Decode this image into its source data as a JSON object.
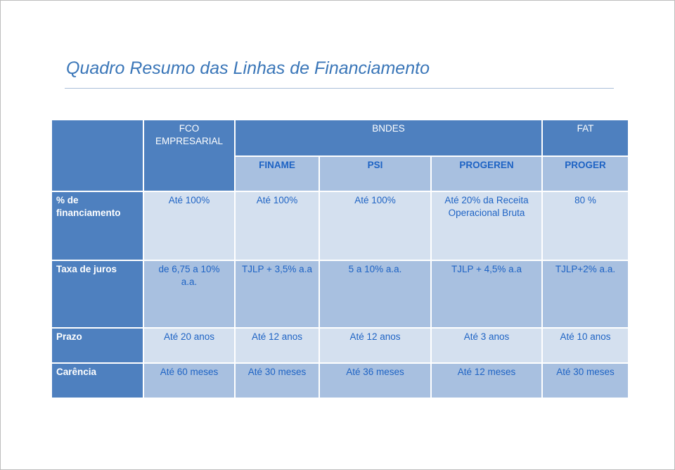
{
  "title": "Quadro Resumo das Linhas de Financiamento",
  "table": {
    "groups": {
      "fco": "FCO EMPRESARIAL",
      "bndes": "BNDES",
      "fat": "FAT"
    },
    "subheaders": {
      "finame": "FINAME",
      "psi": "PSI",
      "progeren": "PROGEREN",
      "proger": "PROGER"
    },
    "rows": [
      {
        "label": "% de financiamento",
        "cells": [
          "Até 100%",
          "Até 100%",
          "Até 100%",
          "Até 20% da Receita Operacional Bruta",
          "80 %"
        ]
      },
      {
        "label": "Taxa de juros",
        "cells": [
          "de 6,75 a 10% a.a.",
          "TJLP + 3,5% a.a",
          "5 a 10% a.a.",
          "TJLP + 4,5% a.a",
          "TJLP+2% a.a."
        ]
      },
      {
        "label": "Prazo",
        "cells": [
          "Até 20 anos",
          "Até 12 anos",
          "Até 12 anos",
          "Até 3 anos",
          "Até 10 anos"
        ]
      },
      {
        "label": "Carência",
        "cells": [
          "Até 60 meses",
          "Até 30 meses",
          "Até 36 meses",
          "Até 12 meses",
          "Até 30 meses"
        ]
      }
    ]
  },
  "colors": {
    "title": "#3a76b8",
    "header_bg": "#4e80bf",
    "light_cell": "#d4e0ef",
    "mid_cell": "#a8c0e0",
    "cell_text": "#1e63c4"
  }
}
